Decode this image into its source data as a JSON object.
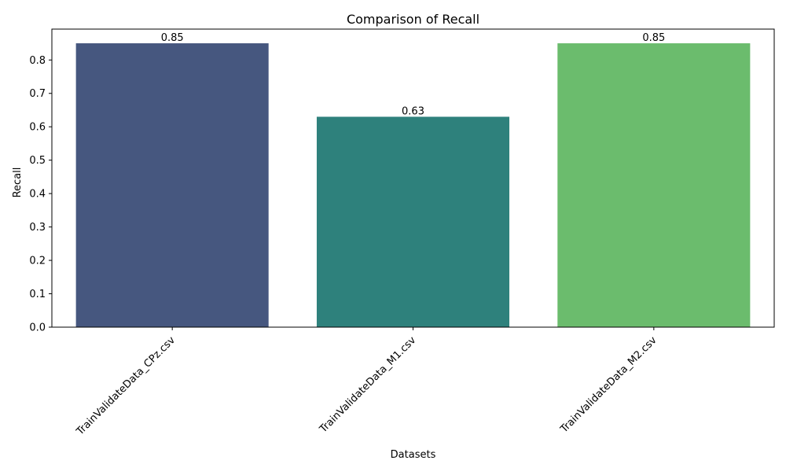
{
  "chart_data": {
    "type": "bar",
    "title": "Comparison of Recall",
    "xlabel": "Datasets",
    "ylabel": "Recall",
    "categories": [
      "TrainValidateData_CPz.csv",
      "TrainValidateData_M1.csv",
      "TrainValidateData_M2.csv"
    ],
    "values": [
      0.85,
      0.63,
      0.85
    ],
    "value_labels": [
      "0.85",
      "0.63",
      "0.85"
    ],
    "colors": [
      "#46577f",
      "#2e817c",
      "#6bbc6d"
    ],
    "ylim": [
      0,
      0.8925
    ],
    "yticks": [
      0.0,
      0.1,
      0.2,
      0.3,
      0.4,
      0.5,
      0.6,
      0.7,
      0.8
    ],
    "ytick_labels": [
      "0.0",
      "0.1",
      "0.2",
      "0.3",
      "0.4",
      "0.5",
      "0.6",
      "0.7",
      "0.8"
    ],
    "grid": false,
    "legend": "none"
  }
}
